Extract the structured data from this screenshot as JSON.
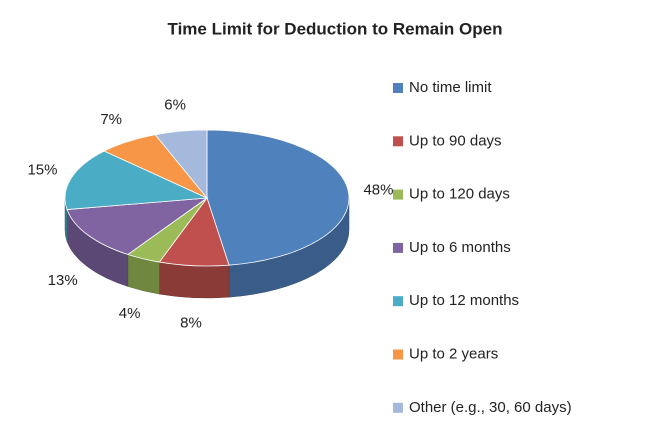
{
  "chart_data": {
    "type": "pie3d",
    "title": "Time Limit for Deduction to Remain Open",
    "categories": [
      "No time limit",
      "Up to 90 days",
      "Up to 120 days",
      "Up to 6 months",
      "Up to 12 months",
      "Up to 2 years",
      "Other (e.g., 30, 60 days)"
    ],
    "values": [
      48,
      8,
      4,
      13,
      15,
      7,
      6
    ],
    "value_labels": [
      "48%",
      "8%",
      "4%",
      "13%",
      "15%",
      "7%",
      "6%"
    ],
    "colors": [
      "#4f81bd",
      "#c0504d",
      "#9bbb59",
      "#8064a2",
      "#4bacc6",
      "#f79646",
      "#a5b9dd"
    ],
    "legend": "right"
  }
}
